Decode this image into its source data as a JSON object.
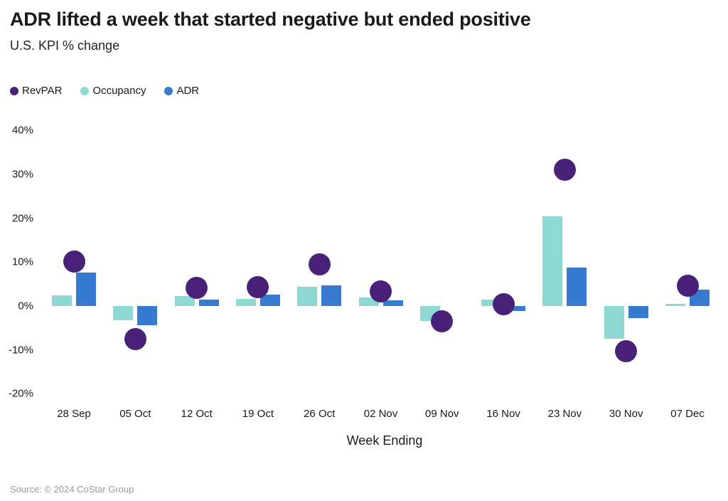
{
  "title": "ADR lifted a week that started negative but ended positive",
  "subtitle": "U.S. KPI % change",
  "source_note": "Source: © 2024 CoStar Group",
  "chart_data": {
    "type": "bar",
    "note": "Grouped bars (Occupancy, ADR) with RevPAR rendered as large circular point markers",
    "categories": [
      "28 Sep",
      "05 Oct",
      "12 Oct",
      "19 Oct",
      "26 Oct",
      "02 Nov",
      "09 Nov",
      "16 Nov",
      "23 Nov",
      "30 Nov",
      "07 Dec"
    ],
    "series": [
      {
        "name": "RevPAR",
        "mark": "point",
        "color": "#4a2178",
        "values": [
          10.1,
          -7.6,
          4.2,
          4.3,
          9.5,
          3.3,
          -3.5,
          0.4,
          31.0,
          -10.3,
          4.6
        ]
      },
      {
        "name": "Occupancy",
        "mark": "bar",
        "color": "#8ed9d3",
        "values": [
          2.4,
          -3.3,
          2.3,
          1.6,
          4.4,
          1.9,
          -3.4,
          1.5,
          20.4,
          -7.5,
          0.5
        ]
      },
      {
        "name": "ADR",
        "mark": "bar",
        "color": "#367bd0",
        "values": [
          7.6,
          -4.3,
          1.5,
          2.6,
          4.7,
          1.3,
          0.0,
          -1.1,
          8.8,
          -2.8,
          3.7
        ]
      }
    ],
    "title": "ADR lifted a week that started negative but ended positive",
    "subtitle": "U.S. KPI % change",
    "xlabel": "Week Ending",
    "ylabel": "",
    "ylim": [
      -20,
      40
    ],
    "yticks": [
      "40%",
      "30%",
      "20%",
      "10%",
      "0%",
      "-10%",
      "-20%"
    ],
    "grid": false,
    "legend_position": "top-left"
  }
}
